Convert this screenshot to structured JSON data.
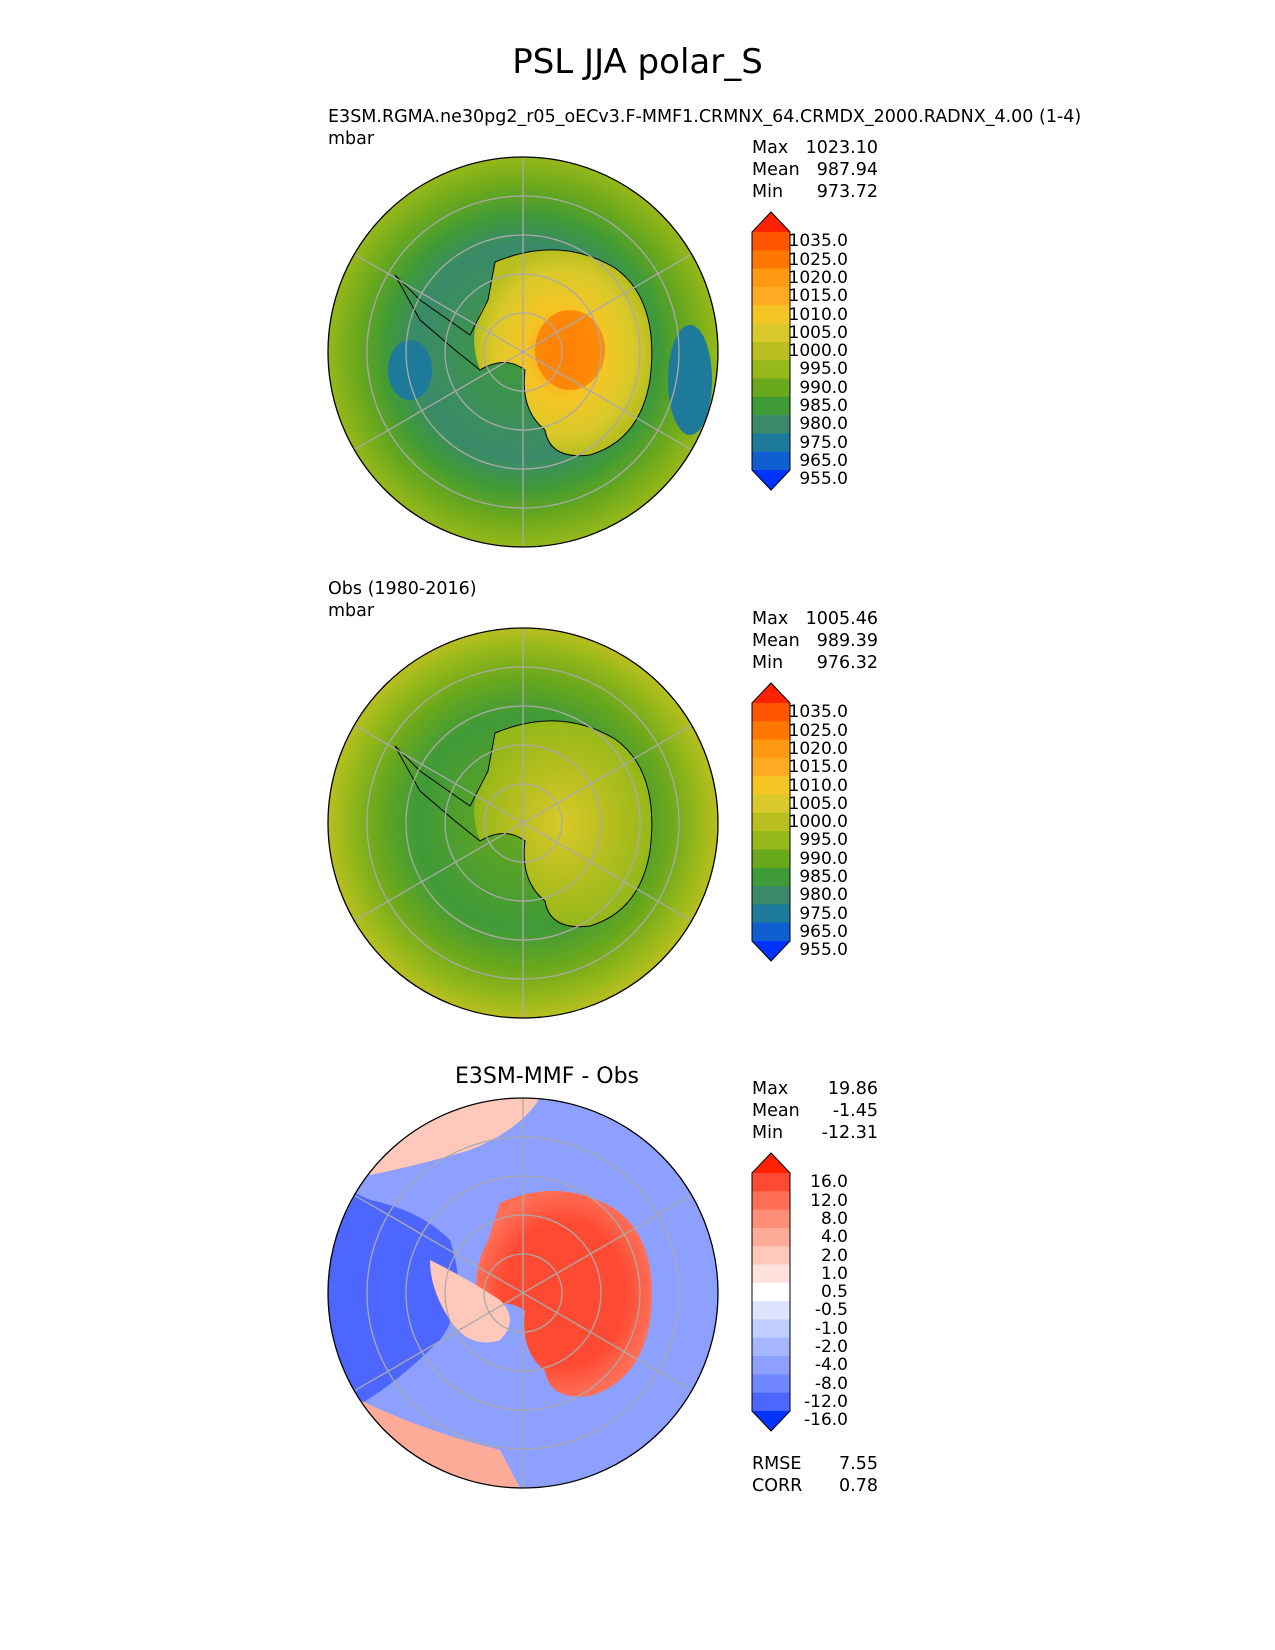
{
  "title": "PSL JJA polar_S",
  "panels": [
    {
      "id": "test",
      "title": "E3SM.RGMA.ne30pg2_r05_oECv3.F-MMF1.CRMNX_64.CRMDX_2000.RADNX_4.00 (1-4)",
      "units": "mbar",
      "stats": [
        {
          "label": "Max",
          "value": "1023.10"
        },
        {
          "label": "Mean",
          "value": "987.94"
        },
        {
          "label": "Min",
          "value": "973.72"
        }
      ]
    },
    {
      "id": "obs",
      "title": "Obs (1980-2016)",
      "units": "mbar",
      "stats": [
        {
          "label": "Max",
          "value": "1005.46"
        },
        {
          "label": "Mean",
          "value": "989.39"
        },
        {
          "label": "Min",
          "value": "976.32"
        }
      ]
    },
    {
      "id": "diff",
      "title": "E3SM-MMF - Obs",
      "units": "",
      "stats": [
        {
          "label": "Max",
          "value": "19.86"
        },
        {
          "label": "Mean",
          "value": "-1.45"
        },
        {
          "label": "Min",
          "value": "-12.31"
        }
      ],
      "metrics": [
        {
          "label": "RMSE",
          "value": "7.55"
        },
        {
          "label": "CORR",
          "value": "0.78"
        }
      ]
    }
  ],
  "colorbars": {
    "psl": {
      "labels": [
        "1035.0",
        "1025.0",
        "1020.0",
        "1015.0",
        "1010.0",
        "1005.0",
        "1000.0",
        "995.0",
        "990.0",
        "985.0",
        "980.0",
        "975.0",
        "965.0",
        "955.0"
      ],
      "colors": [
        "#ff2200",
        "#ff5500",
        "#ff7700",
        "#ff9911",
        "#ffaa22",
        "#f5c525",
        "#d9c92a",
        "#b8bf1f",
        "#96b81a",
        "#6aa81c",
        "#3f9a38",
        "#3a8a6a",
        "#1e7a9a",
        "#0f5fd0",
        "#0033ff"
      ]
    },
    "diff": {
      "labels": [
        "16.0",
        "12.0",
        "8.0",
        "4.0",
        "2.0",
        "1.0",
        "0.5",
        "-0.5",
        "-1.0",
        "-2.0",
        "-4.0",
        "-8.0",
        "-12.0",
        "-16.0"
      ],
      "colors": [
        "#ff2200",
        "#ff4a33",
        "#ff6e55",
        "#ff8f77",
        "#ffab99",
        "#ffc8bb",
        "#ffe2dc",
        "#ffffff",
        "#dde4ff",
        "#c2ceff",
        "#a5b6ff",
        "#8da0ff",
        "#6e86ff",
        "#4d66ff",
        "#0033ff"
      ]
    }
  },
  "chart_data": [
    {
      "type": "heatmap",
      "title": "E3SM.RGMA.ne30pg2_r05_oECv3.F-MMF1.CRMNX_64.CRMDX_2000.RADNX_4.00 (1-4)",
      "projection": "south polar stereographic",
      "field": "PSL",
      "season": "JJA",
      "units": "mbar",
      "levels": [
        955,
        965,
        975,
        980,
        985,
        990,
        995,
        1000,
        1005,
        1010,
        1015,
        1020,
        1025,
        1035
      ],
      "max": 1023.1,
      "mean": 987.94,
      "min": 973.72
    },
    {
      "type": "heatmap",
      "title": "Obs (1980-2016)",
      "projection": "south polar stereographic",
      "field": "PSL",
      "season": "JJA",
      "units": "mbar",
      "levels": [
        955,
        965,
        975,
        980,
        985,
        990,
        995,
        1000,
        1005,
        1010,
        1015,
        1020,
        1025,
        1035
      ],
      "max": 1005.46,
      "mean": 989.39,
      "min": 976.32
    },
    {
      "type": "heatmap",
      "title": "E3SM-MMF - Obs",
      "projection": "south polar stereographic",
      "field": "PSL difference",
      "levels": [
        -16,
        -12,
        -8,
        -4,
        -2,
        -1,
        -0.5,
        0.5,
        1,
        2,
        4,
        8,
        12,
        16
      ],
      "max": 19.86,
      "mean": -1.45,
      "min": -12.31,
      "rmse": 7.55,
      "corr": 0.78
    }
  ]
}
